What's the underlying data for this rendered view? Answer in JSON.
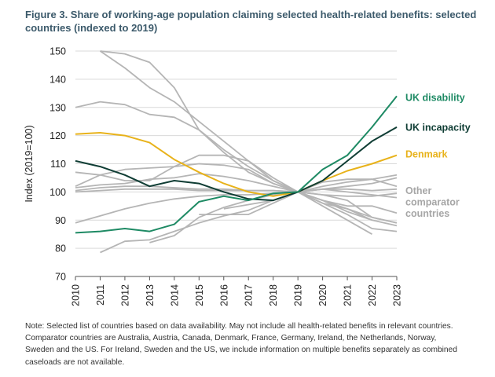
{
  "title": "Figure 3. Share of working-age population claiming selected health-related benefits: selected countries (indexed to 2019)",
  "note": "Note: Selected list of countries based on data availability. May not include all health-related benefits in relevant countries. Comparator countries are Australia, Austria, Canada, Denmark, France, Germany, Ireland, the Netherlands, Norway, Sweden and the US. For Ireland, Sweden and the US, we include information on multiple benefits separately as combined caseloads are not available.",
  "colors": {
    "uk_disability": "#1e8a64",
    "uk_incapacity": "#0f3d34",
    "denmark": "#e8b21a",
    "other": "#b5b5b5",
    "other_label": "#a6a6a6"
  },
  "chart_data": {
    "type": "line",
    "title": "Figure 3. Share of working-age population claiming selected health-related benefits: selected countries (indexed to 2019)",
    "xlabel": "",
    "ylabel": "Index (2019=100)",
    "ylim": [
      70,
      150
    ],
    "y_ticks": [
      "70",
      "80",
      "90",
      "100",
      "110",
      "120",
      "130",
      "140",
      "150"
    ],
    "x_ticks": [
      "2010",
      "2011",
      "2012",
      "2013",
      "2014",
      "2015",
      "2016",
      "2017",
      "2018",
      "2019",
      "2020",
      "2021",
      "2022",
      "2023"
    ],
    "grid": "horizontal",
    "series": [
      {
        "name": "",
        "group": "other",
        "x": [
          2011,
          2012,
          2013,
          2014,
          2015,
          2016,
          2017,
          2018,
          2019,
          2020,
          2021,
          2022
        ],
        "y": [
          150,
          144,
          137,
          132,
          125,
          118,
          111,
          104,
          100,
          95,
          90,
          85
        ]
      },
      {
        "name": "",
        "group": "other",
        "x": [
          2011,
          2012,
          2013,
          2014,
          2015,
          2016,
          2017,
          2018,
          2019,
          2020,
          2021,
          2022,
          2023
        ],
        "y": [
          150,
          149,
          146,
          137,
          122,
          114,
          107,
          103,
          100,
          96,
          92,
          87,
          86
        ]
      },
      {
        "name": "",
        "group": "other",
        "x": [
          2010,
          2011,
          2012,
          2013,
          2014,
          2015,
          2016,
          2017,
          2018,
          2019,
          2020,
          2021,
          2022,
          2023
        ],
        "y": [
          130,
          132,
          131,
          127.5,
          126.5,
          122,
          115,
          109,
          104,
          100,
          97,
          93,
          90,
          88
        ]
      },
      {
        "name": "",
        "group": "other",
        "x": [
          2010,
          2011,
          2012,
          2013,
          2014,
          2015,
          2016,
          2017,
          2018,
          2019,
          2020,
          2021,
          2022,
          2023
        ],
        "y": [
          107,
          106,
          104,
          104,
          109,
          113,
          113,
          111,
          105,
          100,
          97,
          94,
          91,
          89
        ]
      },
      {
        "name": "",
        "group": "other",
        "x": [
          2010,
          2011,
          2012,
          2013,
          2014,
          2015,
          2016,
          2017,
          2018,
          2019,
          2020,
          2021,
          2022,
          2023
        ],
        "y": [
          102,
          106,
          108,
          108.5,
          109,
          110,
          109.5,
          108,
          103,
          100,
          101,
          102,
          103,
          105
        ]
      },
      {
        "name": "",
        "group": "other",
        "x": [
          2010,
          2011,
          2012,
          2013,
          2014,
          2015,
          2016,
          2017,
          2018,
          2019,
          2020,
          2021,
          2022,
          2023
        ],
        "y": [
          100.5,
          101.5,
          102,
          102,
          101.5,
          101,
          101,
          100.5,
          100.5,
          100,
          101,
          101,
          100.5,
          101
        ]
      },
      {
        "name": "",
        "group": "other",
        "x": [
          2010,
          2011,
          2012,
          2013,
          2014,
          2015,
          2016,
          2017,
          2018,
          2019,
          2020,
          2021,
          2022,
          2023
        ],
        "y": [
          100,
          100.5,
          101,
          101,
          101,
          100.5,
          100.5,
          100.5,
          100.5,
          100,
          101,
          100,
          99,
          98
        ]
      },
      {
        "name": "",
        "group": "other",
        "x": [
          2010,
          2011,
          2012,
          2013,
          2014,
          2015,
          2016,
          2017,
          2018,
          2019,
          2020,
          2021,
          2022,
          2023
        ],
        "y": [
          101.5,
          102.5,
          103,
          104.5,
          105,
          106.5,
          105.5,
          104,
          102,
          100,
          103.5,
          104.5,
          104.5,
          102
        ]
      },
      {
        "name": "",
        "group": "other",
        "x": [
          2010,
          2011,
          2012,
          2013,
          2014,
          2015,
          2016,
          2017,
          2018,
          2019,
          2020,
          2021,
          2022,
          2023
        ],
        "y": [
          89,
          91.5,
          94,
          96,
          97.5,
          98.5,
          99,
          99,
          99.5,
          100,
          102,
          103.5,
          104.5,
          106
        ]
      },
      {
        "name": "",
        "group": "other",
        "x": [
          2011,
          2012,
          2013,
          2014,
          2015,
          2016,
          2017,
          2018,
          2019,
          2020,
          2021,
          2022,
          2023
        ],
        "y": [
          78.5,
          82.5,
          83,
          86,
          89,
          91.5,
          93.5,
          97,
          100,
          99,
          98.5,
          98.5,
          99.5
        ]
      },
      {
        "name": "",
        "group": "other",
        "x": [
          2013,
          2014,
          2015,
          2016,
          2017,
          2018,
          2019,
          2020,
          2021,
          2022,
          2023
        ],
        "y": [
          82,
          84.5,
          91,
          94.5,
          97,
          99,
          100,
          97,
          95,
          95,
          92.5
        ]
      },
      {
        "name": "",
        "group": "other",
        "x": [
          2015,
          2016,
          2017,
          2018,
          2019,
          2020,
          2021,
          2022
        ],
        "y": [
          92,
          92,
          92,
          96,
          100,
          96,
          94,
          90
        ]
      },
      {
        "name": "",
        "group": "other",
        "x": [
          2016,
          2017,
          2018,
          2019,
          2020,
          2021,
          2022,
          2023
        ],
        "y": [
          94,
          95.5,
          97,
          100,
          99,
          97,
          91,
          89
        ]
      },
      {
        "name": "UK disability",
        "group": "uk_disability",
        "x": [
          2010,
          2011,
          2012,
          2013,
          2014,
          2015,
          2016,
          2017,
          2018,
          2019,
          2020,
          2021,
          2022,
          2023
        ],
        "y": [
          85.5,
          86,
          87,
          86,
          88.5,
          96.5,
          98.5,
          97,
          99.5,
          100,
          108,
          113,
          123,
          134
        ]
      },
      {
        "name": "UK incapacity",
        "group": "uk_incapacity",
        "x": [
          2010,
          2011,
          2012,
          2013,
          2014,
          2015,
          2016,
          2017,
          2018,
          2019,
          2020,
          2021,
          2022,
          2023
        ],
        "y": [
          111,
          109,
          106,
          102,
          104,
          103,
          100,
          97.5,
          97,
          100,
          104,
          111,
          118,
          123
        ]
      },
      {
        "name": "Denmark",
        "group": "denmark",
        "x": [
          2010,
          2011,
          2012,
          2013,
          2014,
          2015,
          2016,
          2017,
          2018,
          2019,
          2020,
          2021,
          2022,
          2023
        ],
        "y": [
          120.5,
          121,
          120,
          117.5,
          111.5,
          107,
          103,
          100,
          98.5,
          100,
          104,
          107.5,
          110,
          113
        ]
      }
    ],
    "labels": [
      {
        "text": "UK disability",
        "group": "uk_disability",
        "y": 133.5
      },
      {
        "text": "UK incapacity",
        "group": "uk_incapacity",
        "y": 123
      },
      {
        "text": "Denmark",
        "group": "denmark",
        "y": 113.5
      },
      {
        "text": "Other",
        "group": "other",
        "y": 100.5
      },
      {
        "text": "comparator",
        "group": "other",
        "y": 96.5
      },
      {
        "text": "countries",
        "group": "other",
        "y": 92.5
      }
    ]
  }
}
